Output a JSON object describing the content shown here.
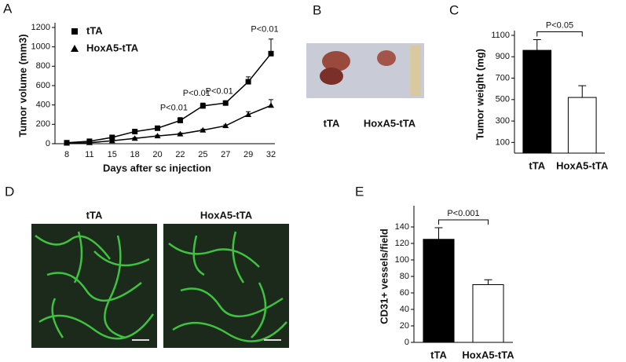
{
  "panel_labels": [
    "A",
    "B",
    "C",
    "D",
    "E"
  ],
  "image_b": {
    "labels": [
      "tTA",
      "HoxA5-tTA"
    ]
  },
  "image_d": {
    "labels": [
      "tTA",
      "HoxA5-tTA"
    ]
  },
  "chart_data": [
    {
      "type": "line",
      "y_label": "Tumor volume (mm3)",
      "x_label": "Days after sc injection",
      "categories": [
        "8",
        "11",
        "15",
        "18",
        "20",
        "22",
        "25",
        "27",
        "29",
        "32"
      ],
      "series": [
        {
          "name": "tTA",
          "color": "#000000",
          "marker": "square",
          "values": [
            10,
            25,
            65,
            125,
            160,
            240,
            390,
            420,
            640,
            930
          ],
          "errors": [
            5,
            5,
            10,
            15,
            15,
            30,
            30,
            20,
            50,
            150
          ]
        },
        {
          "name": "HoxA5-tTA",
          "color": "#000000",
          "marker": "triangle",
          "values": [
            5,
            10,
            30,
            55,
            80,
            100,
            140,
            185,
            300,
            395
          ],
          "errors": [
            3,
            3,
            5,
            8,
            8,
            10,
            10,
            10,
            30,
            60
          ]
        }
      ],
      "annotations": [
        {
          "text": "P<0.01",
          "x": "22"
        },
        {
          "text": "P<0.01",
          "x": "25"
        },
        {
          "text": "P<0.01",
          "x": "27"
        },
        {
          "text": "P<0.01",
          "x": "32"
        }
      ],
      "ylim": [
        0,
        1200
      ],
      "yticks": [
        0,
        200,
        400,
        600,
        800,
        1000,
        1200
      ]
    },
    {
      "type": "bar",
      "y_label": "Tumor weight (mg)",
      "categories": [
        "tTA",
        "HoxA5-tTA"
      ],
      "values": [
        960,
        520
      ],
      "errors": [
        100,
        110
      ],
      "colors": [
        "#000000",
        "#ffffff"
      ],
      "annotations": [
        {
          "text": "P<0.05"
        }
      ],
      "ylim": [
        0,
        1100
      ],
      "yticks": [
        100,
        300,
        500,
        700,
        900,
        1100
      ]
    },
    {
      "type": "bar",
      "y_label": "CD31+ vessels/field",
      "categories": [
        "tTA",
        "HoxA5-tTA"
      ],
      "values": [
        125,
        70
      ],
      "errors": [
        14,
        6
      ],
      "colors": [
        "#000000",
        "#ffffff"
      ],
      "annotations": [
        {
          "text": "P<0.001"
        }
      ],
      "ylim": [
        0,
        160
      ],
      "yticks": [
        0,
        20,
        40,
        60,
        80,
        100,
        120,
        140
      ]
    }
  ]
}
